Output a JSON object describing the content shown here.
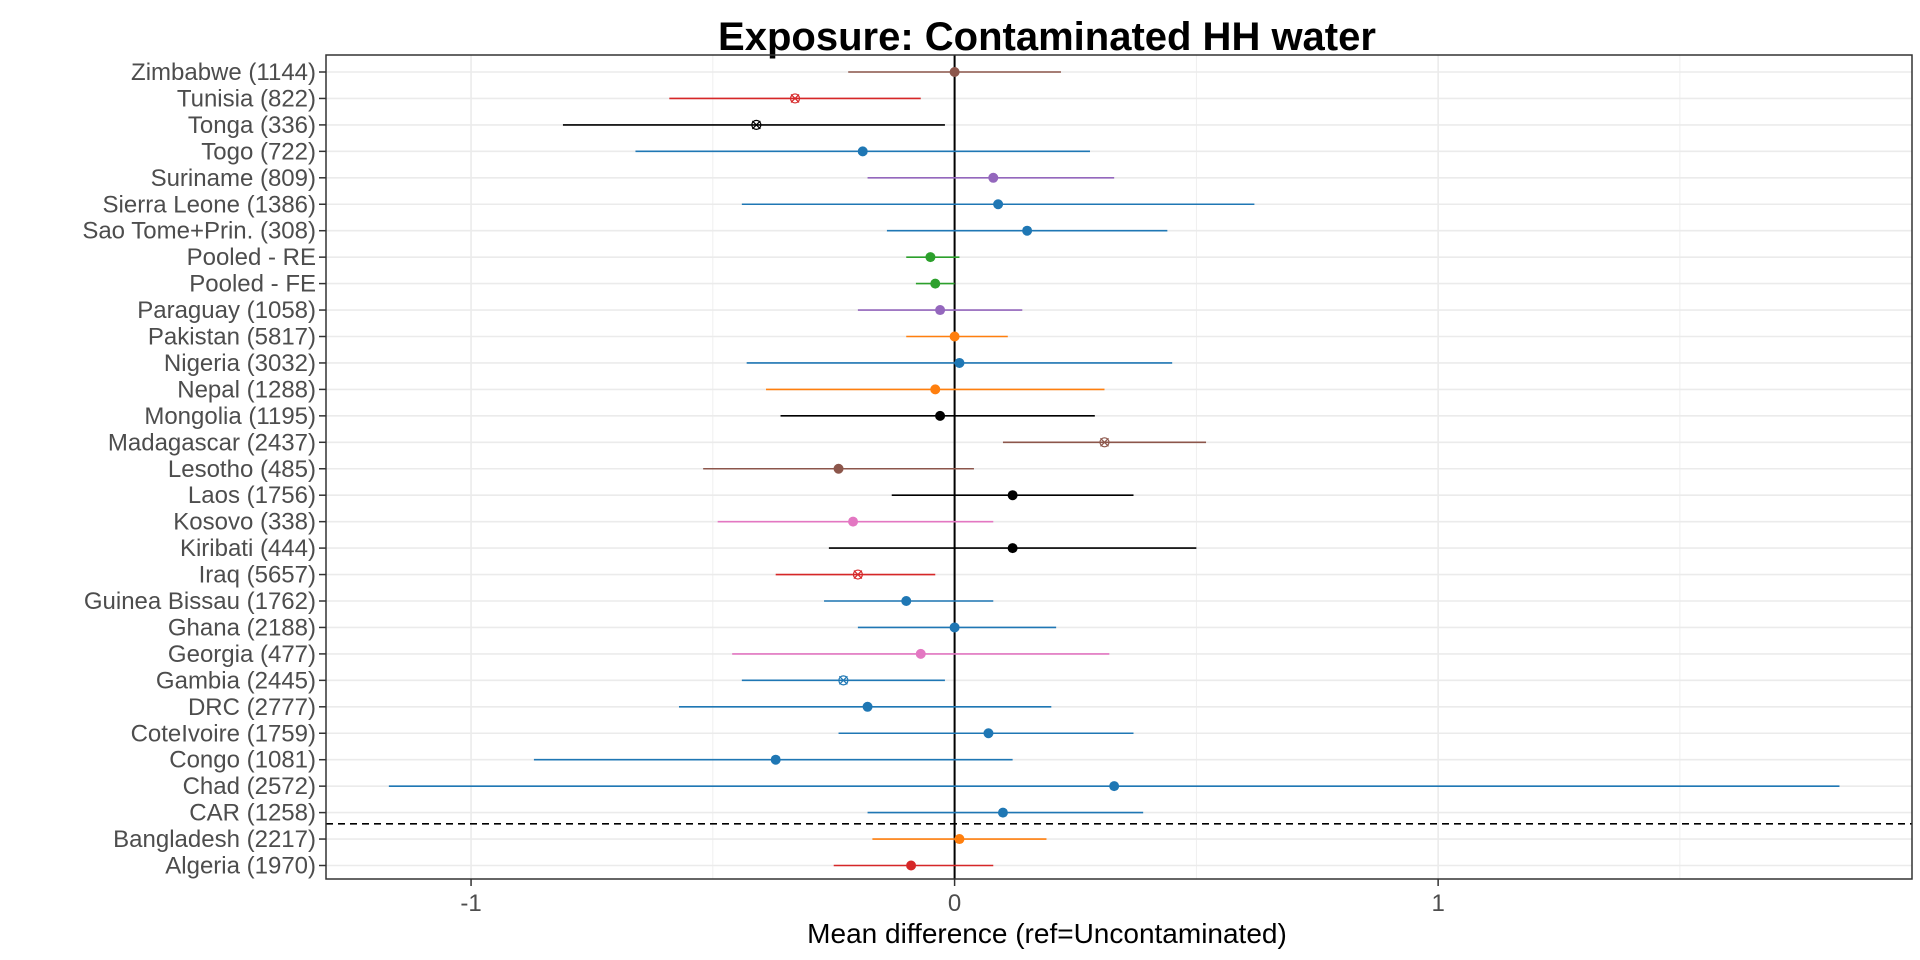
{
  "chart_data": {
    "type": "forest",
    "title": "Exposure: Contaminated HH water",
    "xlabel": "Mean difference (ref=Uncontaminated)",
    "ylabel": "",
    "xlim": [
      -1.3,
      1.98
    ],
    "xticks": [
      -1,
      0,
      1
    ],
    "xtick_labels": [
      "-1",
      "0",
      "1"
    ],
    "grid": true,
    "reference_line_x": 0,
    "separator_between": [
      "CAR (1258)",
      "Bangladesh (2217)"
    ],
    "rows": [
      {
        "label": "Zimbabwe (1144)",
        "estimate": 0.0,
        "lower": -0.22,
        "upper": 0.22,
        "color": "#8c564b",
        "marker": "dot"
      },
      {
        "label": "Tunisia (822)",
        "estimate": -0.33,
        "lower": -0.59,
        "upper": -0.07,
        "color": "#d62728",
        "marker": "cross"
      },
      {
        "label": "Tonga (336)",
        "estimate": -0.41,
        "lower": -0.81,
        "upper": -0.02,
        "color": "#000000",
        "marker": "cross"
      },
      {
        "label": "Togo (722)",
        "estimate": -0.19,
        "lower": -0.66,
        "upper": 0.28,
        "color": "#1f77b4",
        "marker": "dot"
      },
      {
        "label": "Suriname (809)",
        "estimate": 0.08,
        "lower": -0.18,
        "upper": 0.33,
        "color": "#9467bd",
        "marker": "dot"
      },
      {
        "label": "Sierra Leone (1386)",
        "estimate": 0.09,
        "lower": -0.44,
        "upper": 0.62,
        "color": "#1f77b4",
        "marker": "dot"
      },
      {
        "label": "Sao Tome+Prin. (308)",
        "estimate": 0.15,
        "lower": -0.14,
        "upper": 0.44,
        "color": "#1f77b4",
        "marker": "dot"
      },
      {
        "label": "Pooled - RE",
        "estimate": -0.05,
        "lower": -0.1,
        "upper": 0.01,
        "color": "#2ca02c",
        "marker": "dot"
      },
      {
        "label": "Pooled - FE",
        "estimate": -0.04,
        "lower": -0.08,
        "upper": 0.0,
        "color": "#2ca02c",
        "marker": "dot"
      },
      {
        "label": "Paraguay (1058)",
        "estimate": -0.03,
        "lower": -0.2,
        "upper": 0.14,
        "color": "#9467bd",
        "marker": "dot"
      },
      {
        "label": "Pakistan (5817)",
        "estimate": 0.0,
        "lower": -0.1,
        "upper": 0.11,
        "color": "#ff7f0e",
        "marker": "dot"
      },
      {
        "label": "Nigeria (3032)",
        "estimate": 0.01,
        "lower": -0.43,
        "upper": 0.45,
        "color": "#1f77b4",
        "marker": "dot"
      },
      {
        "label": "Nepal (1288)",
        "estimate": -0.04,
        "lower": -0.39,
        "upper": 0.31,
        "color": "#ff7f0e",
        "marker": "dot"
      },
      {
        "label": "Mongolia (1195)",
        "estimate": -0.03,
        "lower": -0.36,
        "upper": 0.29,
        "color": "#000000",
        "marker": "dot"
      },
      {
        "label": "Madagascar (2437)",
        "estimate": 0.31,
        "lower": 0.1,
        "upper": 0.52,
        "color": "#8c564b",
        "marker": "cross"
      },
      {
        "label": "Lesotho (485)",
        "estimate": -0.24,
        "lower": -0.52,
        "upper": 0.04,
        "color": "#8c564b",
        "marker": "dot"
      },
      {
        "label": "Laos (1756)",
        "estimate": 0.12,
        "lower": -0.13,
        "upper": 0.37,
        "color": "#000000",
        "marker": "dot"
      },
      {
        "label": "Kosovo (338)",
        "estimate": -0.21,
        "lower": -0.49,
        "upper": 0.08,
        "color": "#e377c2",
        "marker": "dot"
      },
      {
        "label": "Kiribati (444)",
        "estimate": 0.12,
        "lower": -0.26,
        "upper": 0.5,
        "color": "#000000",
        "marker": "dot"
      },
      {
        "label": "Iraq (5657)",
        "estimate": -0.2,
        "lower": -0.37,
        "upper": -0.04,
        "color": "#d62728",
        "marker": "cross"
      },
      {
        "label": "Guinea Bissau (1762)",
        "estimate": -0.1,
        "lower": -0.27,
        "upper": 0.08,
        "color": "#1f77b4",
        "marker": "dot"
      },
      {
        "label": "Ghana (2188)",
        "estimate": 0.0,
        "lower": -0.2,
        "upper": 0.21,
        "color": "#1f77b4",
        "marker": "dot"
      },
      {
        "label": "Georgia (477)",
        "estimate": -0.07,
        "lower": -0.46,
        "upper": 0.32,
        "color": "#e377c2",
        "marker": "dot"
      },
      {
        "label": "Gambia (2445)",
        "estimate": -0.23,
        "lower": -0.44,
        "upper": -0.02,
        "color": "#1f77b4",
        "marker": "cross"
      },
      {
        "label": "DRC (2777)",
        "estimate": -0.18,
        "lower": -0.57,
        "upper": 0.2,
        "color": "#1f77b4",
        "marker": "dot"
      },
      {
        "label": "CoteIvoire (1759)",
        "estimate": 0.07,
        "lower": -0.24,
        "upper": 0.37,
        "color": "#1f77b4",
        "marker": "dot"
      },
      {
        "label": "Congo (1081)",
        "estimate": -0.37,
        "lower": -0.87,
        "upper": 0.12,
        "color": "#1f77b4",
        "marker": "dot"
      },
      {
        "label": "Chad (2572)",
        "estimate": 0.33,
        "lower": -1.17,
        "upper": 1.83,
        "color": "#1f77b4",
        "marker": "dot"
      },
      {
        "label": "CAR (1258)",
        "estimate": 0.1,
        "lower": -0.18,
        "upper": 0.39,
        "color": "#1f77b4",
        "marker": "dot"
      },
      {
        "label": "Bangladesh (2217)",
        "estimate": 0.01,
        "lower": -0.17,
        "upper": 0.19,
        "color": "#ff7f0e",
        "marker": "dot"
      },
      {
        "label": "Algeria (1970)",
        "estimate": -0.09,
        "lower": -0.25,
        "upper": 0.08,
        "color": "#d62728",
        "marker": "dot"
      }
    ]
  }
}
